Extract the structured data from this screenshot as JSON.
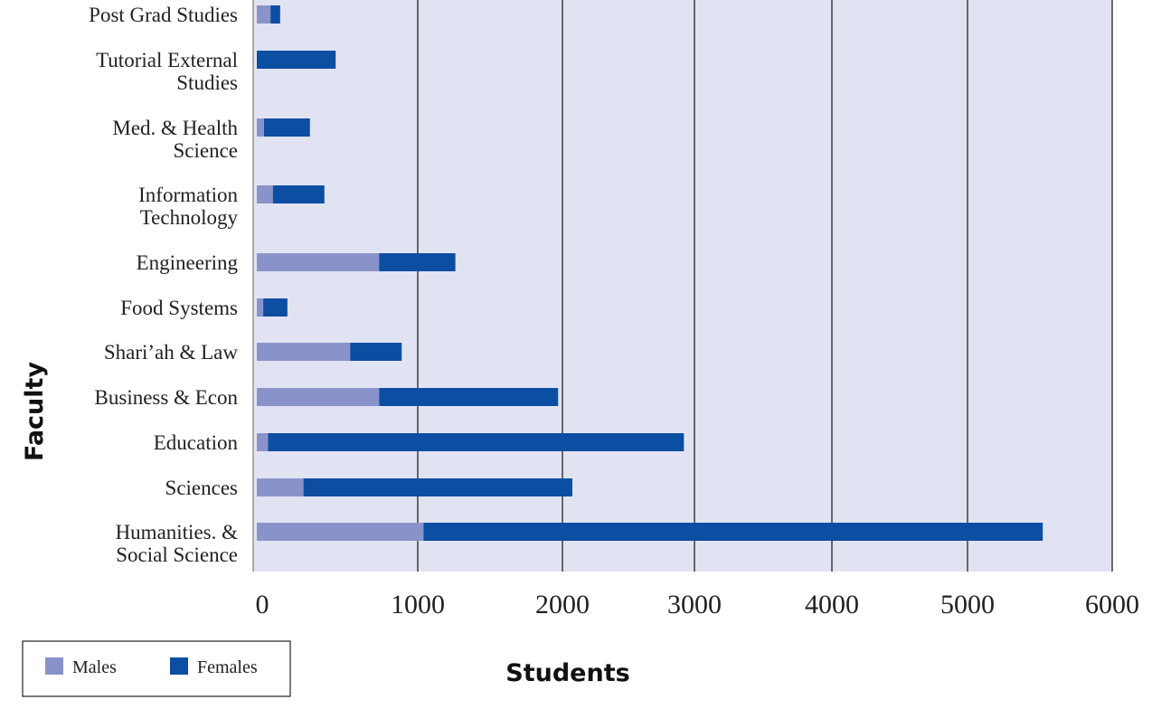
{
  "chart_data": {
    "type": "bar",
    "orientation": "horizontal",
    "stacked": true,
    "title": "",
    "xlabel": "Students",
    "ylabel": "Faculty",
    "xlim": [
      0,
      6000
    ],
    "xticks": [
      "0",
      "1000",
      "2000",
      "3000",
      "4000",
      "5000",
      "6000"
    ],
    "grid": true,
    "legend_position": "bottom-left",
    "categories": [
      [
        "Post Grad Studies"
      ],
      [
        "Tutorial External",
        "Studies"
      ],
      [
        "Med. & Health",
        "Science"
      ],
      [
        "Information",
        "Technology"
      ],
      [
        "Engineering"
      ],
      [
        "Food Systems"
      ],
      [
        "Shari’ah & Law"
      ],
      [
        "Business & Econ"
      ],
      [
        "Education"
      ],
      [
        "Sciences"
      ],
      [
        "Humanities. &",
        "Social  Science"
      ]
    ],
    "series": [
      {
        "name": "Males",
        "color": "#8a93c9",
        "values": [
          85,
          0,
          45,
          100,
          760,
          40,
          580,
          760,
          70,
          290,
          1040
        ]
      },
      {
        "name": "Females",
        "color": "#0b4ea2",
        "values": [
          60,
          490,
          285,
          320,
          500,
          150,
          320,
          1210,
          2850,
          1785,
          4480
        ]
      }
    ]
  }
}
